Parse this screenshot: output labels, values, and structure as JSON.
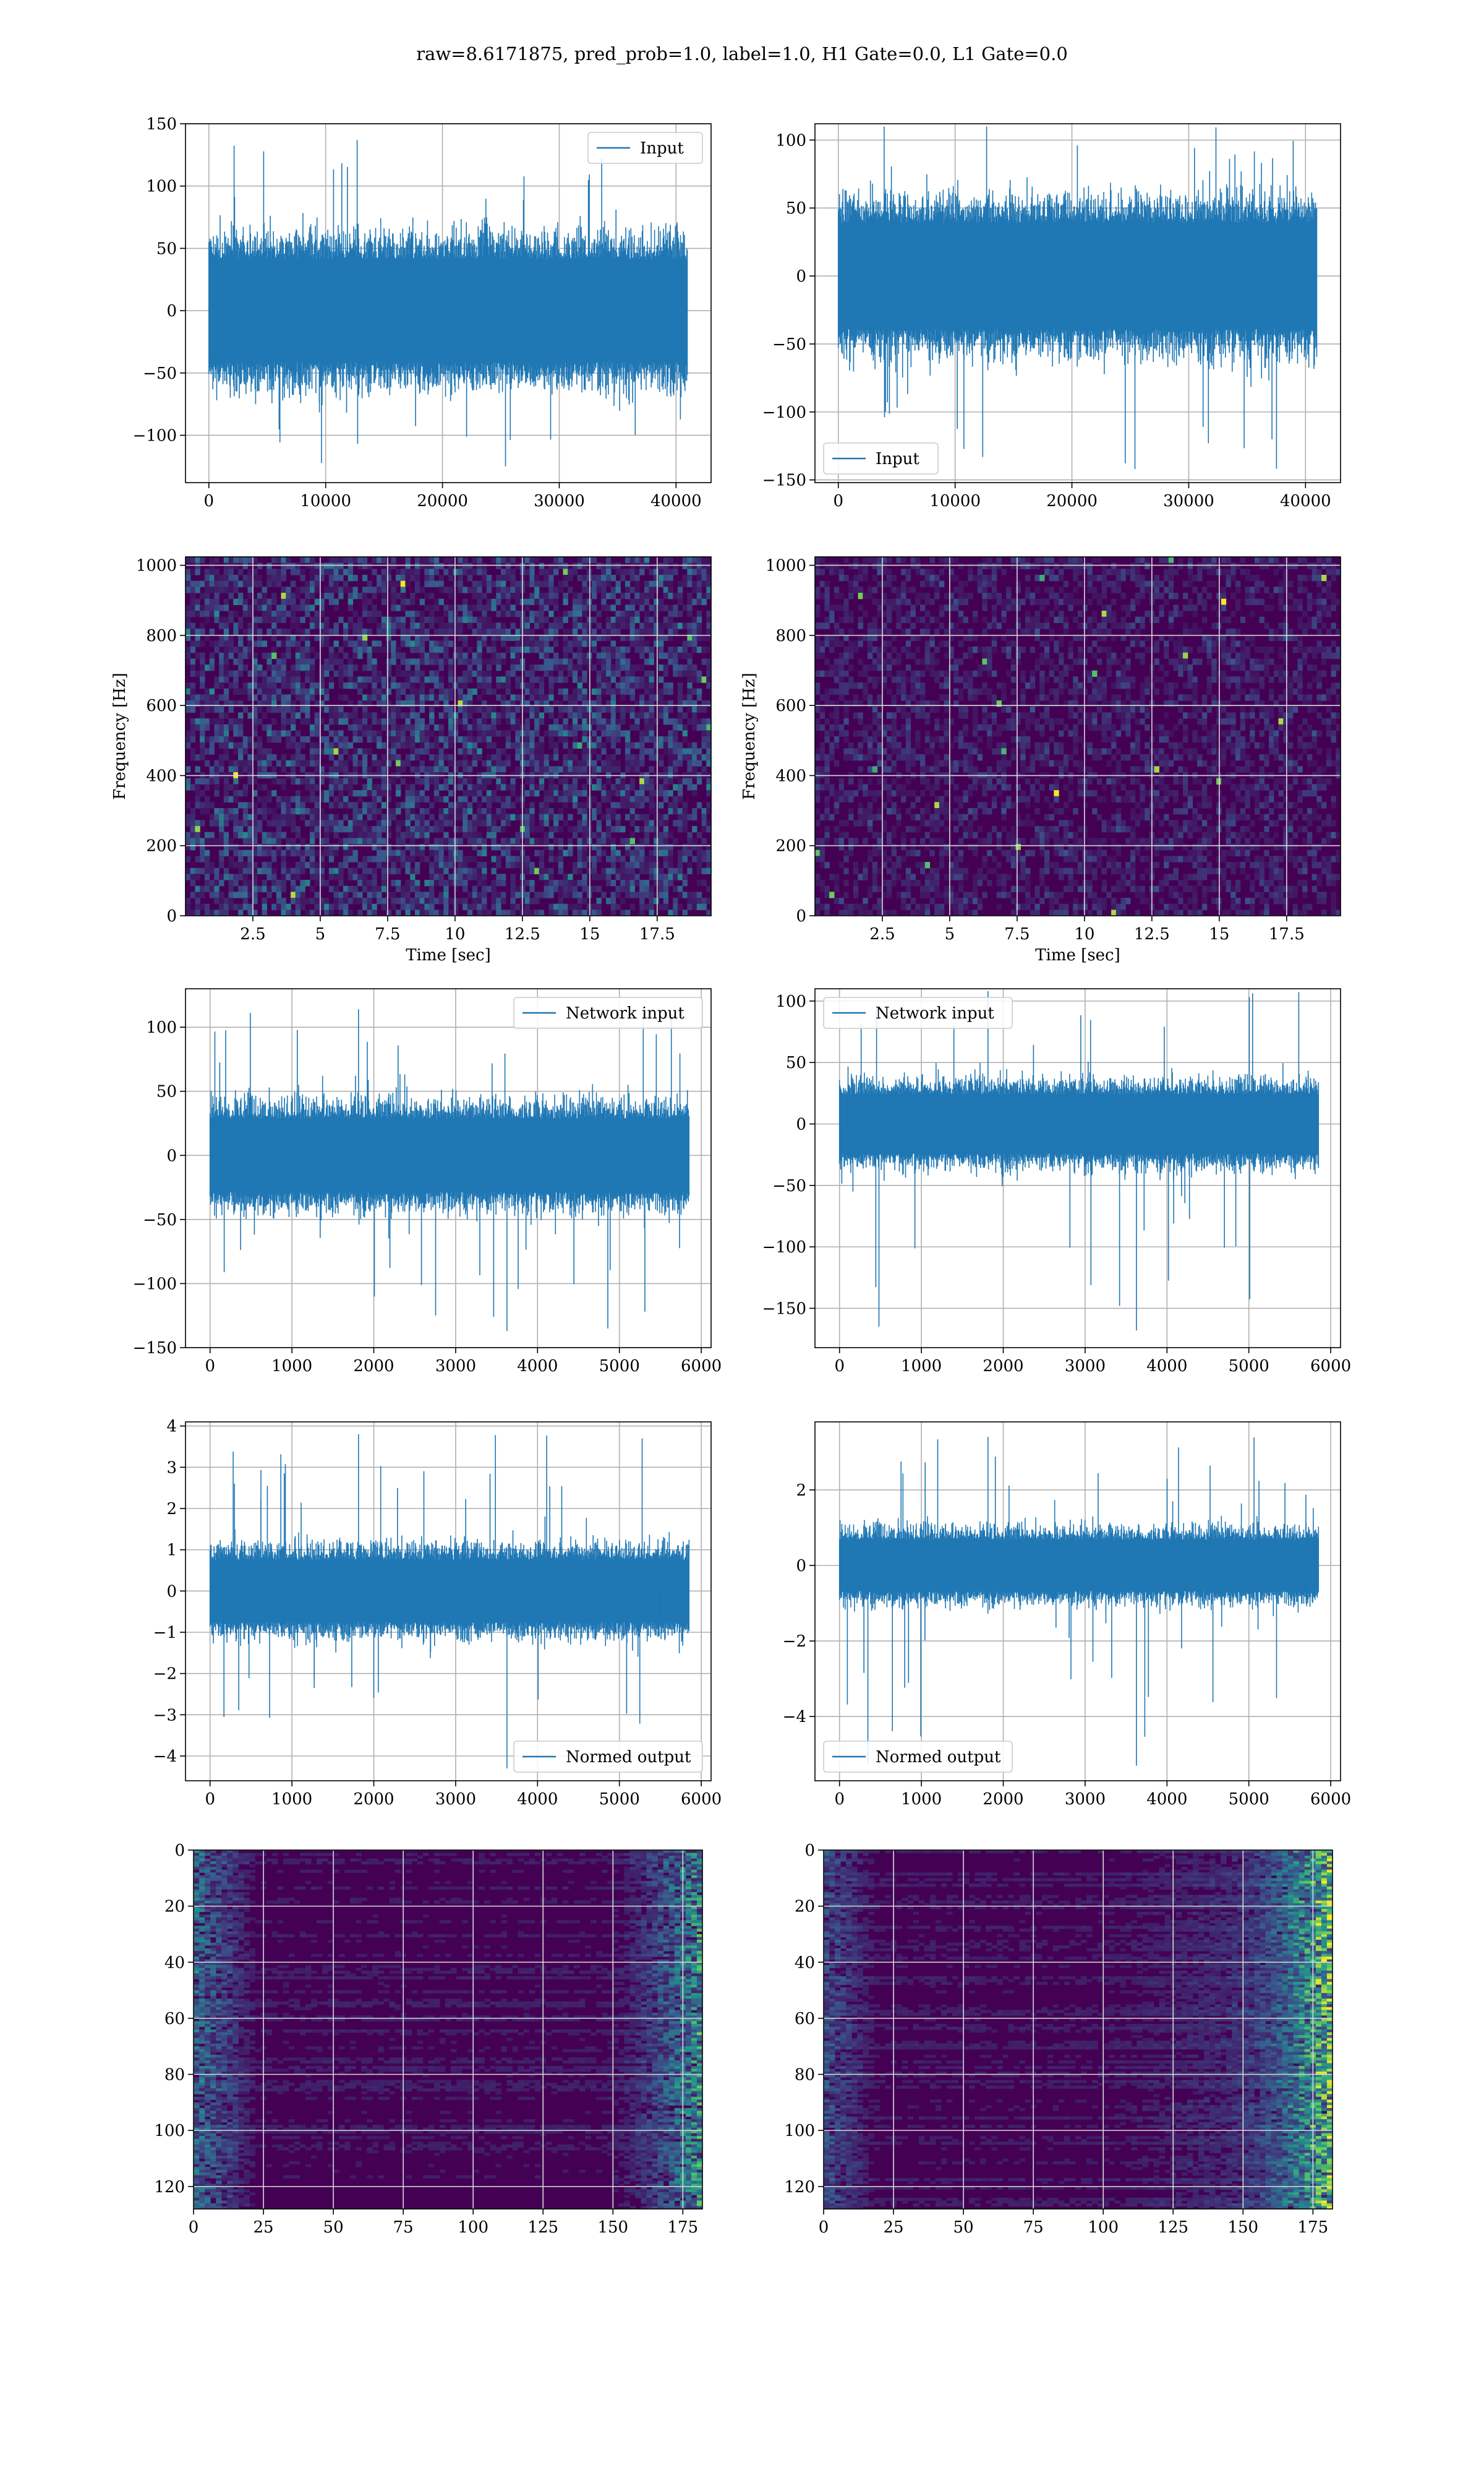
{
  "figure": {
    "title": "raw=8.6171875, pred_prob=1.0, label=1.0, H1 Gate=0.0, L1 Gate=0.0"
  },
  "colors": {
    "line": "#1f77b4",
    "grid": "#b0b0b0",
    "viridis_dark": "#440154",
    "viridis_mid": "#21918c",
    "viridis_bright": "#fde725"
  },
  "chart_data": [
    {
      "id": "p1",
      "type": "line",
      "title": "",
      "xlabel": "",
      "ylabel": "",
      "legend": "Input",
      "legend_loc": "upper right",
      "xlim": [
        -2000,
        43000
      ],
      "ylim": [
        -138,
        150
      ],
      "xticks": [
        0,
        10000,
        20000,
        30000,
        40000
      ],
      "yticks": [
        -100,
        -50,
        0,
        50,
        100,
        150
      ],
      "envelope": {
        "x": [
          0,
          40960
        ],
        "lo": -55,
        "hi": 55,
        "peak_max": 137,
        "peak_min": -125
      },
      "grid": true
    },
    {
      "id": "p2",
      "type": "line",
      "title": "",
      "xlabel": "",
      "ylabel": "",
      "legend": "Input",
      "legend_loc": "lower left",
      "xlim": [
        -2000,
        43000
      ],
      "ylim": [
        -152,
        112
      ],
      "xticks": [
        0,
        10000,
        20000,
        30000,
        40000
      ],
      "yticks": [
        -150,
        -100,
        -50,
        0,
        50,
        100
      ],
      "envelope": {
        "x": [
          0,
          40960
        ],
        "lo": -52,
        "hi": 52,
        "peak_max": 110,
        "peak_min": -142
      },
      "grid": true
    },
    {
      "id": "p3",
      "type": "heatmap",
      "title": "",
      "xlabel": "Time [sec]",
      "ylabel": "Frequency [Hz]",
      "xlim": [
        0,
        19.5
      ],
      "ylim": [
        0,
        1024
      ],
      "xticks": [
        2.5,
        5.0,
        7.5,
        10.0,
        12.5,
        15.0,
        17.5
      ],
      "yticks": [
        0,
        200,
        400,
        600,
        800,
        1000
      ],
      "grid": true
    },
    {
      "id": "p4",
      "type": "heatmap",
      "title": "",
      "xlabel": "Time [sec]",
      "ylabel": "Frequency [Hz]",
      "xlim": [
        0,
        19.5
      ],
      "ylim": [
        0,
        1024
      ],
      "xticks": [
        2.5,
        5.0,
        7.5,
        10.0,
        12.5,
        15.0,
        17.5
      ],
      "yticks": [
        0,
        200,
        400,
        600,
        800,
        1000
      ],
      "grid": true
    },
    {
      "id": "p5",
      "type": "line",
      "title": "",
      "xlabel": "",
      "ylabel": "",
      "legend": "Network input",
      "legend_loc": "upper right",
      "xlim": [
        -300,
        6120
      ],
      "ylim": [
        -150,
        130
      ],
      "xticks": [
        0,
        1000,
        2000,
        3000,
        4000,
        5000,
        6000
      ],
      "yticks": [
        -150,
        -100,
        -50,
        0,
        50,
        100
      ],
      "envelope": {
        "x": [
          0,
          5850
        ],
        "lo": -38,
        "hi": 38,
        "peak_max": 114,
        "peak_min": -137
      },
      "grid": true
    },
    {
      "id": "p6",
      "type": "line",
      "title": "",
      "xlabel": "",
      "ylabel": "",
      "legend": "Network input",
      "legend_loc": "upper left",
      "xlim": [
        -300,
        6120
      ],
      "ylim": [
        -182,
        110
      ],
      "xticks": [
        0,
        1000,
        2000,
        3000,
        4000,
        5000,
        6000
      ],
      "yticks": [
        -150,
        -100,
        -50,
        0,
        50,
        100
      ],
      "envelope": {
        "x": [
          0,
          5850
        ],
        "lo": -32,
        "hi": 32,
        "peak_max": 108,
        "peak_min": -168
      },
      "grid": true
    },
    {
      "id": "p7",
      "type": "line",
      "title": "",
      "xlabel": "",
      "ylabel": "",
      "legend": "Normed output",
      "legend_loc": "lower right",
      "xlim": [
        -300,
        6120
      ],
      "ylim": [
        -4.6,
        4.1
      ],
      "xticks": [
        0,
        1000,
        2000,
        3000,
        4000,
        5000,
        6000
      ],
      "yticks": [
        -4,
        -3,
        -2,
        -1,
        0,
        1,
        2,
        3,
        4
      ],
      "envelope": {
        "x": [
          0,
          5850
        ],
        "lo": -1.0,
        "hi": 1.0,
        "peak_max": 3.8,
        "peak_min": -4.3
      },
      "grid": true
    },
    {
      "id": "p8",
      "type": "line",
      "title": "",
      "xlabel": "",
      "ylabel": "",
      "legend": "Normed output",
      "legend_loc": "lower left",
      "xlim": [
        -300,
        6120
      ],
      "ylim": [
        -5.7,
        3.8
      ],
      "xticks": [
        0,
        1000,
        2000,
        3000,
        4000,
        5000,
        6000
      ],
      "yticks": [
        -4,
        -2,
        0,
        2
      ],
      "envelope": {
        "x": [
          0,
          5850
        ],
        "lo": -0.9,
        "hi": 0.9,
        "peak_max": 3.4,
        "peak_min": -5.3
      },
      "grid": true
    },
    {
      "id": "p9",
      "type": "heatmap",
      "title": "",
      "xlabel": "",
      "ylabel": "",
      "xlim": [
        0,
        182
      ],
      "ylim": [
        0,
        128
      ],
      "xticks": [
        0,
        25,
        50,
        75,
        100,
        125,
        150,
        175
      ],
      "yticks": [
        0,
        20,
        40,
        60,
        80,
        100,
        120
      ],
      "y_inverted": true,
      "grid": true
    },
    {
      "id": "p10",
      "type": "heatmap",
      "title": "",
      "xlabel": "",
      "ylabel": "",
      "xlim": [
        0,
        182
      ],
      "ylim": [
        0,
        128
      ],
      "xticks": [
        0,
        25,
        50,
        75,
        100,
        125,
        150,
        175
      ],
      "yticks": [
        0,
        20,
        40,
        60,
        80,
        100,
        120
      ],
      "y_inverted": true,
      "grid": true
    }
  ]
}
